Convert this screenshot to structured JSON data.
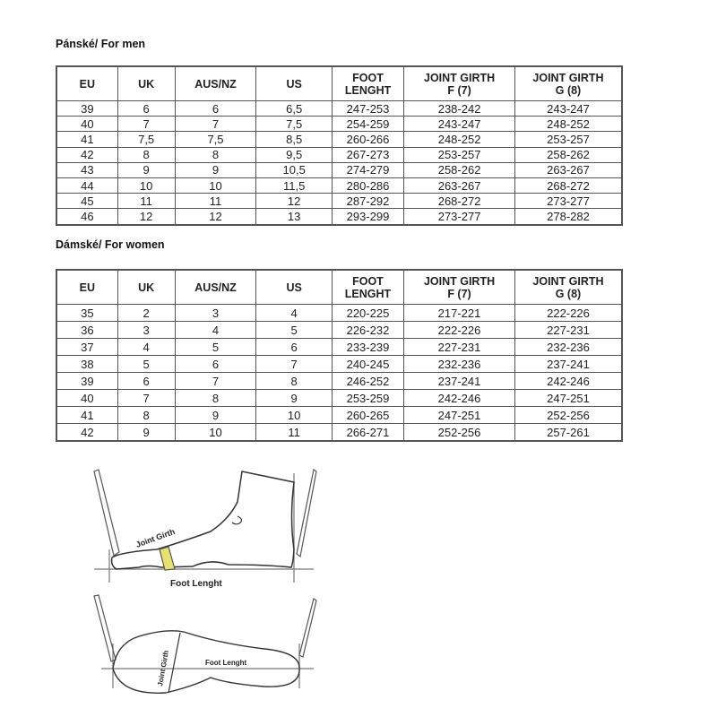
{
  "men": {
    "title": "Pánské/ For men",
    "headers": [
      [
        "EU"
      ],
      [
        "UK"
      ],
      [
        "AUS/NZ"
      ],
      [
        "US"
      ],
      [
        "FOOT",
        "LENGHT"
      ],
      [
        "JOINT GIRTH",
        "F (7)"
      ],
      [
        "JOINT GIRTH",
        "G (8)"
      ]
    ],
    "rows": [
      [
        "39",
        "6",
        "6",
        "6,5",
        "247-253",
        "238-242",
        "243-247"
      ],
      [
        "40",
        "7",
        "7",
        "7,5",
        "254-259",
        "243-247",
        "248-252"
      ],
      [
        "41",
        "7,5",
        "7,5",
        "8,5",
        "260-266",
        "248-252",
        "253-257"
      ],
      [
        "42",
        "8",
        "8",
        "9,5",
        "267-273",
        "253-257",
        "258-262"
      ],
      [
        "43",
        "9",
        "9",
        "10,5",
        "274-279",
        "258-262",
        "263-267"
      ],
      [
        "44",
        "10",
        "10",
        "11,5",
        "280-286",
        "263-267",
        "268-272"
      ],
      [
        "45",
        "11",
        "11",
        "12",
        "287-292",
        "268-272",
        "273-277"
      ],
      [
        "46",
        "12",
        "12",
        "13",
        "293-299",
        "273-277",
        "278-282"
      ]
    ]
  },
  "women": {
    "title": "Dámské/ For women",
    "headers": [
      [
        "EU"
      ],
      [
        "UK"
      ],
      [
        "AUS/NZ"
      ],
      [
        "US"
      ],
      [
        "FOOT",
        "LENGHT"
      ],
      [
        "JOINT GIRTH",
        "F (7)"
      ],
      [
        "JOINT GIRTH",
        "G (8)"
      ]
    ],
    "rows": [
      [
        "35",
        "2",
        "3",
        "4",
        "220-225",
        "217-221",
        "222-226"
      ],
      [
        "36",
        "3",
        "4",
        "5",
        "226-232",
        "222-226",
        "227-231"
      ],
      [
        "37",
        "4",
        "5",
        "6",
        "233-239",
        "227-231",
        "232-236"
      ],
      [
        "38",
        "5",
        "6",
        "7",
        "240-245",
        "232-236",
        "237-241"
      ],
      [
        "39",
        "6",
        "7",
        "8",
        "246-252",
        "237-241",
        "242-246"
      ],
      [
        "40",
        "7",
        "8",
        "9",
        "253-259",
        "242-246",
        "247-251"
      ],
      [
        "41",
        "8",
        "9",
        "10",
        "260-265",
        "247-251",
        "252-256"
      ],
      [
        "42",
        "9",
        "10",
        "11",
        "266-271",
        "252-256",
        "257-261"
      ]
    ]
  },
  "diagram": {
    "side_joint_girth": "Joint Girth",
    "side_foot_length": "Foot Lenght",
    "sole_joint_girth": "Joint Girth",
    "sole_foot_length": "Foot Lenght",
    "tape_color": "#e8e070"
  }
}
